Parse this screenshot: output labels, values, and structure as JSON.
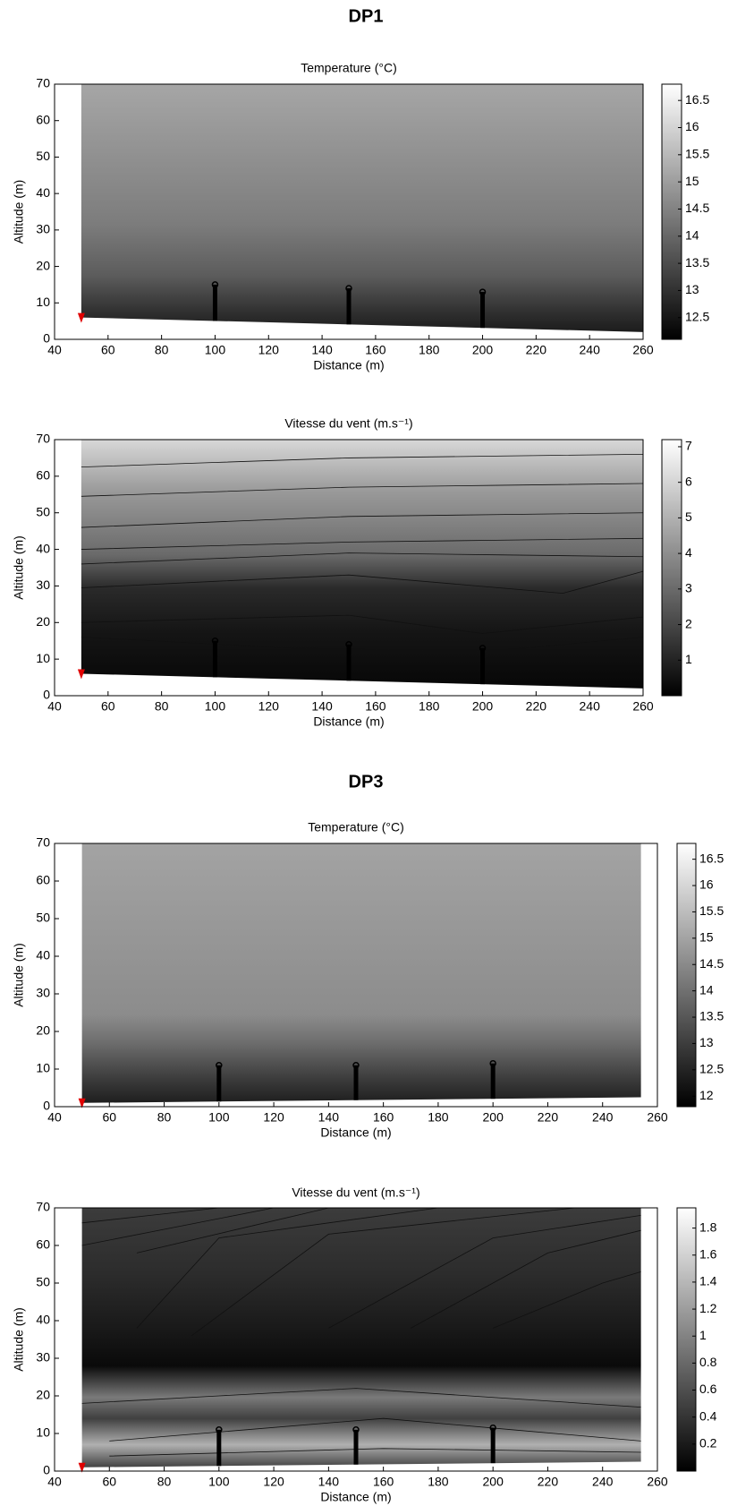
{
  "sections": [
    {
      "title": "DP1"
    },
    {
      "title": "DP3"
    }
  ],
  "chart_data": [
    {
      "type": "heatmap",
      "title": "Temperature (°C)",
      "x_label": "Distance (m)",
      "y_label": "Altitude (m)",
      "xlim": [
        40,
        260
      ],
      "ylim": [
        0,
        70
      ],
      "xticks": [
        40,
        60,
        80,
        100,
        120,
        140,
        160,
        180,
        200,
        220,
        240,
        260
      ],
      "yticks": [
        0,
        10,
        20,
        30,
        40,
        50,
        60,
        70
      ],
      "colormap": "gray",
      "colorbar": {
        "lim": [
          12.1,
          16.8
        ],
        "ticks": [
          12.5,
          13,
          13.5,
          14,
          14.5,
          15,
          15.5,
          16,
          16.5
        ]
      },
      "ground": {
        "x": [
          50,
          260
        ],
        "altitude": [
          6,
          2
        ]
      },
      "masts": {
        "x": [
          100,
          150,
          200
        ],
        "top": [
          15,
          14,
          13
        ]
      }
    },
    {
      "type": "heatmap",
      "title": "Vitesse du vent (m.s⁻¹)",
      "x_label": "Distance (m)",
      "y_label": "Altitude (m)",
      "xlim": [
        40,
        260
      ],
      "ylim": [
        0,
        70
      ],
      "xticks": [
        40,
        60,
        80,
        100,
        120,
        140,
        160,
        180,
        200,
        220,
        240,
        260
      ],
      "yticks": [
        0,
        10,
        20,
        30,
        40,
        50,
        60,
        70
      ],
      "colormap": "gray",
      "colorbar": {
        "lim": [
          0,
          7.2
        ],
        "ticks": [
          1,
          2,
          3,
          4,
          5,
          6,
          7
        ]
      },
      "ground": {
        "x": [
          50,
          260
        ],
        "altitude": [
          6,
          2
        ]
      },
      "masts": {
        "x": [
          100,
          150,
          200
        ],
        "top": [
          15,
          14,
          13
        ]
      }
    },
    {
      "type": "heatmap",
      "title": "Temperature (°C)",
      "x_label": "Distance (m)",
      "y_label": "Altitude (m)",
      "xlim": [
        40,
        260
      ],
      "ylim": [
        0,
        70
      ],
      "xticks": [
        40,
        60,
        80,
        100,
        120,
        140,
        160,
        180,
        200,
        220,
        240,
        260
      ],
      "yticks": [
        0,
        10,
        20,
        30,
        40,
        50,
        60,
        70
      ],
      "colormap": "gray",
      "colorbar": {
        "lim": [
          11.8,
          16.8
        ],
        "ticks": [
          12,
          12.5,
          13,
          13.5,
          14,
          14.5,
          15,
          15.5,
          16,
          16.5
        ]
      },
      "ground": {
        "x": [
          50,
          254
        ],
        "altitude": [
          1,
          2.5
        ]
      },
      "masts": {
        "x": [
          100,
          150,
          200
        ],
        "top": [
          11,
          11,
          11.5
        ]
      }
    },
    {
      "type": "heatmap",
      "title": "Vitesse du vent (m.s⁻¹)",
      "x_label": "Distance (m)",
      "y_label": "Altitude (m)",
      "xlim": [
        40,
        260
      ],
      "ylim": [
        0,
        70
      ],
      "xticks": [
        40,
        60,
        80,
        100,
        120,
        140,
        160,
        180,
        200,
        220,
        240,
        260
      ],
      "yticks": [
        0,
        10,
        20,
        30,
        40,
        50,
        60,
        70
      ],
      "colormap": "gray",
      "colorbar": {
        "lim": [
          0,
          1.95
        ],
        "ticks": [
          0.2,
          0.4,
          0.6,
          0.8,
          1,
          1.2,
          1.4,
          1.6,
          1.8
        ]
      },
      "ground": {
        "x": [
          50,
          254
        ],
        "altitude": [
          1,
          2.5
        ]
      },
      "masts": {
        "x": [
          100,
          150,
          200
        ],
        "top": [
          11,
          11,
          11.5
        ]
      }
    }
  ]
}
